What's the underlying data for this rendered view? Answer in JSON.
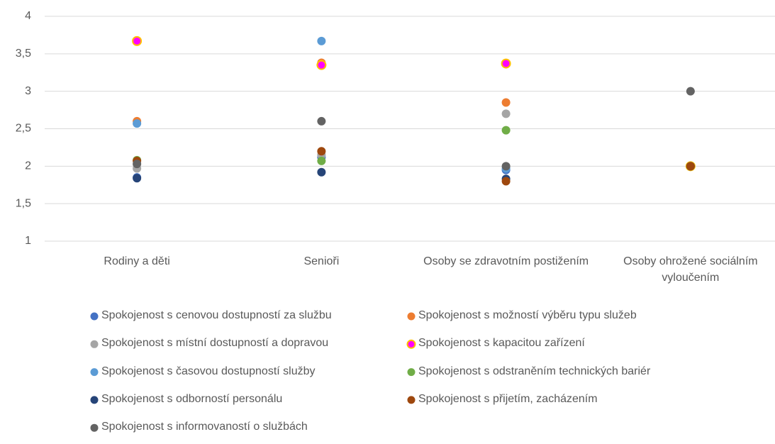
{
  "chart_data": {
    "type": "dot",
    "categories": [
      "Rodiny a děti",
      "Senioři",
      "Osoby se zdravotním postižením",
      "Osoby ohrožené sociálním vyloučením"
    ],
    "ylim": [
      1,
      4
    ],
    "yticks": [
      1,
      {
        "value": 1.5,
        "label": "1,5"
      },
      2,
      {
        "value": 2.5,
        "label": "2,5"
      },
      3,
      {
        "value": 3.5,
        "label": "3,5"
      },
      4
    ],
    "grid": true,
    "legend": "bottom",
    "series": [
      {
        "name": "Spokojenost s cenovou dostupností za službu",
        "color": "#4472c4",
        "values": [
          1.85,
          2.12,
          1.95,
          2.0
        ]
      },
      {
        "name": "Spokojenost s možností výběru typu služeb",
        "color": "#ed7d31",
        "values": [
          2.6,
          3.38,
          2.85,
          2.0
        ]
      },
      {
        "name": "Spokojenost s místní dostupností a dopravou",
        "color": "#a5a5a5",
        "values": [
          1.97,
          2.15,
          2.7,
          2.0
        ]
      },
      {
        "name": "Spokojenost s kapacitou zařízení",
        "color": "#ff00ff",
        "edgecolor": "#ffc000",
        "values": [
          3.67,
          3.35,
          3.37,
          2.0
        ]
      },
      {
        "name": "Spokojenost s časovou dostupností služby",
        "color": "#5b9bd5",
        "values": [
          2.57,
          3.67,
          1.97,
          2.0
        ]
      },
      {
        "name": "Spokojenost s odstraněním technických bariér",
        "color": "#70ad47",
        "values": [
          2.08,
          2.07,
          2.48,
          2.0
        ]
      },
      {
        "name": "Spokojenost s odborností personálu",
        "color": "#264478",
        "values": [
          1.84,
          1.92,
          1.83,
          2.0
        ]
      },
      {
        "name": "Spokojenost s přijetím, zacházením",
        "color": "#9e480e",
        "values": [
          2.07,
          2.2,
          1.8,
          2.0
        ]
      },
      {
        "name": "Spokojenost s informovaností o službách",
        "color": "#636363",
        "values": [
          2.03,
          2.6,
          2.0,
          3.0
        ]
      }
    ]
  }
}
